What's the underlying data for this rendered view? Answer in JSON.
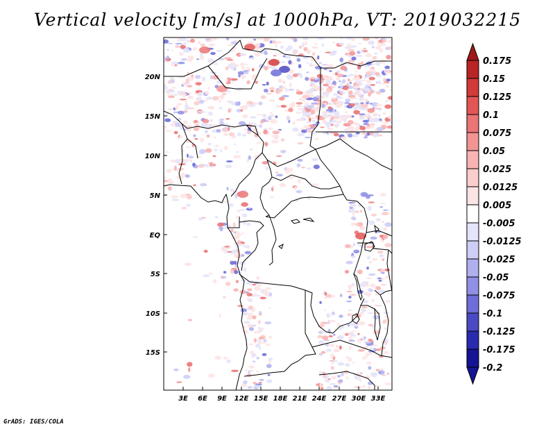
{
  "title": "Vertical velocity [m/s] at 1000hPa, VT: 2019032215",
  "footer": "GrADS: IGES/COLA",
  "map": {
    "lat_labels": [
      "20N",
      "15N",
      "10N",
      "5N",
      "EQ",
      "5S",
      "10S",
      "15S"
    ],
    "lon_labels": [
      "3E",
      "6E",
      "9E",
      "12E",
      "15E",
      "18E",
      "21E",
      "24E",
      "27E",
      "30E",
      "33E"
    ]
  },
  "colorbar": {
    "levels": [
      "0.175",
      "0.15",
      "0.125",
      "0.1",
      "0.075",
      "0.05",
      "0.025",
      "0.0125",
      "0.005",
      "-0.005",
      "-0.0125",
      "-0.025",
      "-0.05",
      "-0.075",
      "-0.1",
      "-0.125",
      "-0.175",
      "-0.2"
    ],
    "colors": [
      "#a01818",
      "#b92424",
      "#d33a3a",
      "#e25656",
      "#eb7474",
      "#f39494",
      "#f8b4b4",
      "#fbcdcd",
      "#fde4e4",
      "#ffffff",
      "#e4e4fb",
      "#cdcdf6",
      "#b0b0ef",
      "#9090e6",
      "#6e6ed8",
      "#4a4ac4",
      "#2a2aae",
      "#141494"
    ]
  }
}
